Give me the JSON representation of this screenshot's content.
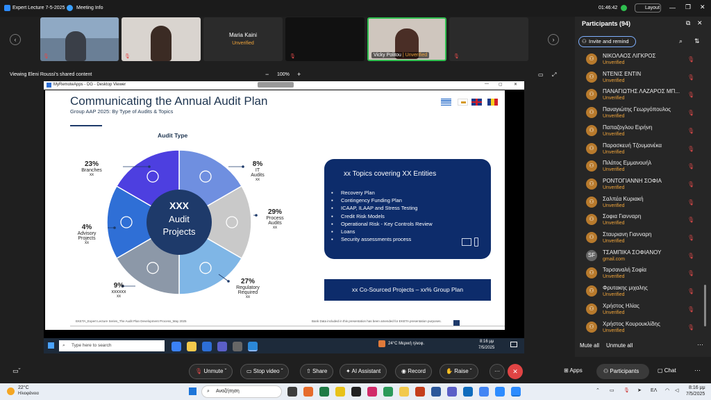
{
  "window": {
    "title": "Expert Lecture 7-5-2025",
    "meeting_info": "Meeting Info",
    "timer": "01:46:42",
    "layout": "Layout"
  },
  "tiles": {
    "maria": {
      "name": "Maria Kaini",
      "status": "Unverified"
    },
    "vicky": {
      "name": "Vicky Politou",
      "status": "Unverified"
    }
  },
  "share": {
    "label": "Viewing Eleni Roussi's shared content",
    "zoom": "100%"
  },
  "remote": {
    "title": "MyRemoteApps - DG - Desktop Viewer",
    "search": "Type here to search",
    "weather": "24°C Μερική ηλιοφ.",
    "time": "8:16 μμ",
    "date": "7/5/2025"
  },
  "slide": {
    "title": "Communicating the Annual Audit Plan",
    "subtitle": "Group AAP 2025: By Type of Audits & Topics",
    "chart_title": "Audit Type",
    "center_line1": "XXX",
    "center_line2": "Audit",
    "center_line3": "Projects",
    "footer_left": "EKETA_Expert Lecture Series_The Audit Plan Development Process_May 2025",
    "footer_right": "Bank Data included in this presentation has been amended for EKETA presentation purposes.",
    "topics_title": "xx Topics covering XX Entities",
    "topics": [
      "Recovery Plan",
      "Contingency Funding Plan",
      "ICAAP, ILAAP and Stress Testing",
      "Credit Risk Models",
      "Operational Risk - Key Controls Review",
      "Loans",
      "Security assessments process"
    ],
    "cosourced": "xx Co-Sourced Projects – xx% Group Plan"
  },
  "chart_data": {
    "type": "pie",
    "title": "Audit Type",
    "slices": [
      {
        "pct": "8%",
        "label": "IT Audits",
        "sub": "xx",
        "value": 8,
        "color": "#6f8fe0"
      },
      {
        "pct": "29%",
        "label": "Process Audits",
        "sub": "xx",
        "value": 29,
        "color": "#c9c9c9"
      },
      {
        "pct": "27%",
        "label": "Regulatory Required",
        "sub": "xx",
        "value": 27,
        "color": "#7fb6e6"
      },
      {
        "pct": "9%",
        "label": "xxxxxx",
        "sub": "xx",
        "value": 9,
        "color": "#8c98a8"
      },
      {
        "pct": "4%",
        "label": "Advisory Projects",
        "sub": "xx",
        "value": 4,
        "color": "#2f6fd6"
      },
      {
        "pct": "23%",
        "label": "Branches",
        "sub": "xx",
        "value": 23,
        "color": "#4d3fe0"
      }
    ]
  },
  "panel": {
    "title": "Participants (94)",
    "invite": "Invite and remind",
    "mute_all": "Mute all",
    "unmute_all": "Unmute all",
    "participants": [
      {
        "name": "ΝΙΚΟΛΑΟΣ ΛΙΓΚΡΟΣ",
        "status": "Unverified"
      },
      {
        "name": "ΝΤΕΝΙΣ ΕΝΤΙΝ",
        "status": "Unverified"
      },
      {
        "name": "ΠΑΝΑΓΙΩΤΗΣ ΛΑΖΑΡΟΣ ΜΠ...",
        "status": "Unverified"
      },
      {
        "name": "Παναγιώτης Γεωργόπουλος",
        "status": "Unverified"
      },
      {
        "name": "Παπαζογλου Ειρήνη",
        "status": "Unverified"
      },
      {
        "name": "Παρασκευή Τζουμανέκα",
        "status": "Unverified"
      },
      {
        "name": "Πιλάτος Εμμανουήλ",
        "status": "Unverified"
      },
      {
        "name": "ΡΟΝΤΟΓΙΑΝΝΗ ΣΟΦΙΑ",
        "status": "Unverified"
      },
      {
        "name": "Σαλπέα Κυριακή",
        "status": "Unverified"
      },
      {
        "name": "Σοφια Γιανναρη",
        "status": "Unverified"
      },
      {
        "name": "Σταυριανη Γιανναρη",
        "status": "Unverified"
      },
      {
        "name": "ΤΣΑΜΠΙΚΑ ΣΟΦΙΑΝΟΥ",
        "status": "gmail.com",
        "initials": "SF"
      },
      {
        "name": "Ταρσαναλή Σοφία",
        "status": "Unverified"
      },
      {
        "name": "Φρυτακης μιχαλης",
        "status": "Unverified"
      },
      {
        "name": "Χρήστος Ηλίας",
        "status": "Unverified"
      },
      {
        "name": "Χρήστος Κουρουκλίδης",
        "status": "Unverified"
      }
    ]
  },
  "controls": {
    "unmute": "Unmute",
    "stop_video": "Stop video",
    "share": "Share",
    "ai": "AI Assistant",
    "record": "Record",
    "raise": "Raise",
    "apps": "Apps",
    "participants": "Participants",
    "chat": "Chat"
  },
  "windows": {
    "weather_temp": "22°C",
    "weather_desc": "Ηλιοφάνεια",
    "search": "Αναζήτηση",
    "lang": "ΕΛ",
    "time": "8:16 μμ",
    "date": "7/5/2025"
  }
}
